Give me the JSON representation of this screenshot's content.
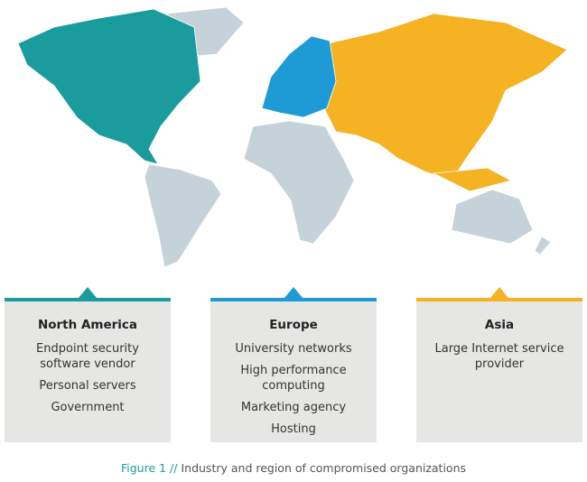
{
  "regions": [
    {
      "name": "North America",
      "color": "#1a9c9c",
      "items": [
        "Endpoint security software vendor",
        "Personal servers",
        "Government"
      ]
    },
    {
      "name": "Europe",
      "color": "#1e9bd7",
      "items": [
        "University networks",
        "High performance computing",
        "Marketing agency",
        "Hosting"
      ]
    },
    {
      "name": "Asia",
      "color": "#f5b222",
      "items": [
        "Large Internet service provider"
      ]
    }
  ],
  "caption": {
    "label": "Figure 1 //",
    "text": "Industry and region of compromised organizations"
  }
}
